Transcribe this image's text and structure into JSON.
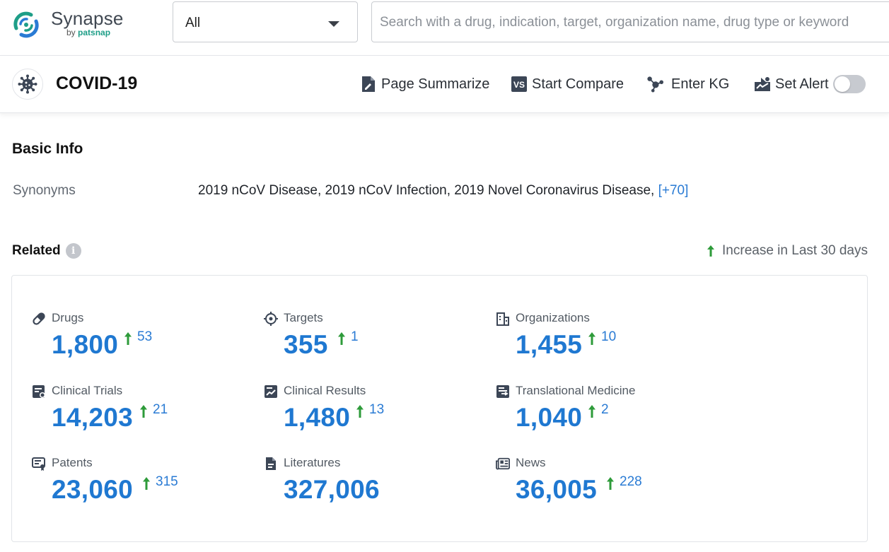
{
  "brand": {
    "name": "Synapse",
    "by": "by ",
    "by_brand": "patsnap"
  },
  "search": {
    "scope_value": "All",
    "placeholder": "Search with a drug, indication, target, organization name, drug type or keyword"
  },
  "title_bar": {
    "title": "COVID-19",
    "actions": {
      "summarize": "Page Summarize",
      "compare": "Start Compare",
      "kg": "Enter KG",
      "alert": "Set Alert"
    },
    "alert_enabled": false
  },
  "basic_info": {
    "heading": "Basic Info",
    "synonyms_label": "Synonyms",
    "synonyms_value": "2019 nCoV Disease, 2019 nCoV Infection, 2019 Novel Coronavirus Disease,",
    "synonyms_more": "[+70]"
  },
  "related": {
    "heading": "Related",
    "legend": "Increase in Last 30 days",
    "items": [
      {
        "label": "Drugs",
        "count": "1,800",
        "delta": "53",
        "icon": "pill-icon"
      },
      {
        "label": "Targets",
        "count": "355",
        "delta": "1",
        "icon": "target-icon"
      },
      {
        "label": "Organizations",
        "count": "1,455",
        "delta": "10",
        "icon": "building-icon"
      },
      {
        "label": "Clinical Trials",
        "count": "14,203",
        "delta": "21",
        "icon": "clinical-trials-icon"
      },
      {
        "label": "Clinical Results",
        "count": "1,480",
        "delta": "13",
        "icon": "clinical-results-icon"
      },
      {
        "label": "Translational Medicine",
        "count": "1,040",
        "delta": "2",
        "icon": "translational-medicine-icon"
      },
      {
        "label": "Patents",
        "count": "23,060",
        "delta": "315",
        "icon": "patent-icon"
      },
      {
        "label": "Literatures",
        "count": "327,006",
        "delta": null,
        "icon": "document-icon"
      },
      {
        "label": "News",
        "count": "36,005",
        "delta": "228",
        "icon": "news-icon"
      }
    ]
  },
  "colors": {
    "accent_blue": "#1f78d1",
    "increase_green": "#2e9b3a",
    "brand_teal": "#1e9e88",
    "toggle_off": "#c7cad0"
  }
}
